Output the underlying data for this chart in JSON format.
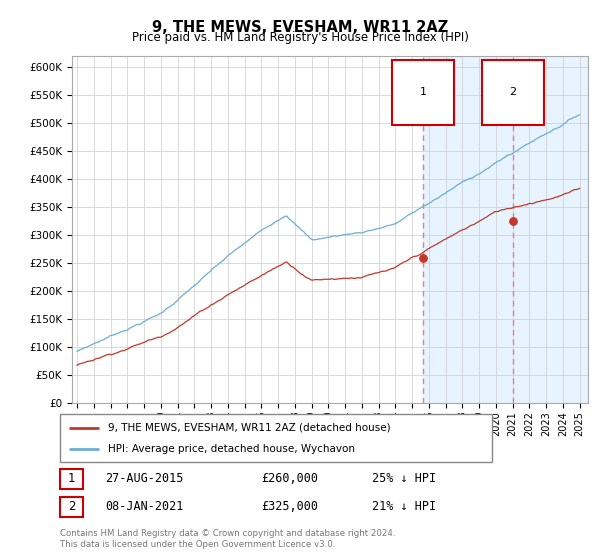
{
  "title": "9, THE MEWS, EVESHAM, WR11 2AZ",
  "subtitle": "Price paid vs. HM Land Registry's House Price Index (HPI)",
  "hpi_color": "#6baed6",
  "price_color": "#c0392b",
  "annotation_box_color": "#cc0000",
  "vline_color": "#e88080",
  "highlight_bg": "#ddeeff",
  "grid_color": "#cccccc",
  "ylim": [
    0,
    620000
  ],
  "yticks": [
    0,
    50000,
    100000,
    150000,
    200000,
    250000,
    300000,
    350000,
    400000,
    450000,
    500000,
    550000,
    600000
  ],
  "xlim_start": 1994.7,
  "xlim_end": 2025.5,
  "transaction1": {
    "date_num": 2015.65,
    "price": 260000,
    "label": "27-AUG-2015",
    "pct": "25% ↓ HPI"
  },
  "transaction2": {
    "date_num": 2021.02,
    "price": 325000,
    "label": "08-JAN-2021",
    "pct": "21% ↓ HPI"
  },
  "legend_entries": [
    "9, THE MEWS, EVESHAM, WR11 2AZ (detached house)",
    "HPI: Average price, detached house, Wychavon"
  ],
  "footer1": "Contains HM Land Registry data © Crown copyright and database right 2024.",
  "footer2": "This data is licensed under the Open Government Licence v3.0."
}
